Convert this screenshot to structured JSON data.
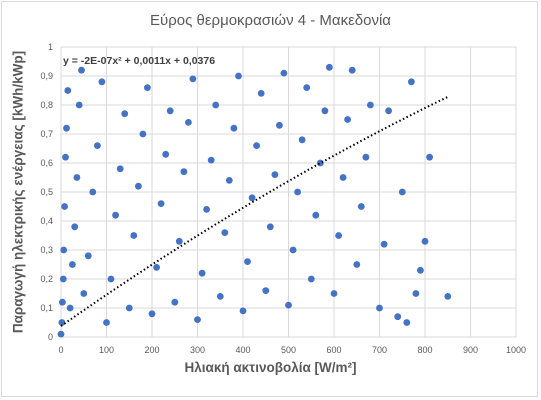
{
  "chart_data": {
    "type": "scatter",
    "title": "Εύρος θερμοκρασιών 4 - Μακεδονία",
    "xlabel": "Ηλιακή ακτινοβολία [W/m²]",
    "ylabel": "Παραγωγή ηλεκτρικής ενέργειας [kWh/kWp]",
    "xlim": [
      0,
      1000
    ],
    "ylim": [
      0,
      1
    ],
    "xticks": [
      "0",
      "100",
      "200",
      "300",
      "400",
      "500",
      "600",
      "700",
      "800",
      "900",
      "1000"
    ],
    "yticks": [
      "0",
      "0,1",
      "0,2",
      "0,3",
      "0,4",
      "0,5",
      "0,6",
      "0,7",
      "0,8",
      "0,9",
      "1"
    ],
    "grid": true,
    "marker_color": "#4472c4",
    "trendline": {
      "type": "polynomial",
      "label": "y = -2E-07x² + 0,0011x + 0,0376",
      "coefficients": {
        "a": -2e-07,
        "b": 0.0011,
        "c": 0.0376
      },
      "x_range": [
        0,
        850
      ],
      "style": "dotted",
      "color": "#000000"
    },
    "series": [
      {
        "points": [
          [
            0,
            0.01
          ],
          [
            2,
            0.05
          ],
          [
            3,
            0.12
          ],
          [
            5,
            0.2
          ],
          [
            6,
            0.3
          ],
          [
            8,
            0.45
          ],
          [
            10,
            0.62
          ],
          [
            12,
            0.72
          ],
          [
            15,
            0.85
          ],
          [
            20,
            0.1
          ],
          [
            25,
            0.25
          ],
          [
            30,
            0.38
          ],
          [
            35,
            0.55
          ],
          [
            40,
            0.8
          ],
          [
            45,
            0.92
          ],
          [
            50,
            0.15
          ],
          [
            60,
            0.28
          ],
          [
            70,
            0.5
          ],
          [
            80,
            0.66
          ],
          [
            90,
            0.88
          ],
          [
            100,
            0.05
          ],
          [
            110,
            0.2
          ],
          [
            120,
            0.42
          ],
          [
            130,
            0.58
          ],
          [
            140,
            0.77
          ],
          [
            150,
            0.1
          ],
          [
            160,
            0.35
          ],
          [
            170,
            0.52
          ],
          [
            180,
            0.7
          ],
          [
            190,
            0.86
          ],
          [
            200,
            0.08
          ],
          [
            210,
            0.24
          ],
          [
            220,
            0.46
          ],
          [
            230,
            0.63
          ],
          [
            240,
            0.78
          ],
          [
            250,
            0.12
          ],
          [
            260,
            0.33
          ],
          [
            270,
            0.57
          ],
          [
            280,
            0.74
          ],
          [
            290,
            0.89
          ],
          [
            300,
            0.06
          ],
          [
            310,
            0.22
          ],
          [
            320,
            0.44
          ],
          [
            330,
            0.61
          ],
          [
            340,
            0.8
          ],
          [
            350,
            0.14
          ],
          [
            360,
            0.36
          ],
          [
            370,
            0.54
          ],
          [
            380,
            0.72
          ],
          [
            390,
            0.9
          ],
          [
            400,
            0.09
          ],
          [
            410,
            0.26
          ],
          [
            420,
            0.48
          ],
          [
            430,
            0.66
          ],
          [
            440,
            0.84
          ],
          [
            450,
            0.16
          ],
          [
            460,
            0.38
          ],
          [
            470,
            0.56
          ],
          [
            480,
            0.73
          ],
          [
            490,
            0.91
          ],
          [
            500,
            0.11
          ],
          [
            510,
            0.3
          ],
          [
            520,
            0.5
          ],
          [
            530,
            0.68
          ],
          [
            540,
            0.86
          ],
          [
            550,
            0.2
          ],
          [
            560,
            0.42
          ],
          [
            570,
            0.6
          ],
          [
            580,
            0.78
          ],
          [
            590,
            0.93
          ],
          [
            600,
            0.15
          ],
          [
            610,
            0.35
          ],
          [
            620,
            0.55
          ],
          [
            630,
            0.75
          ],
          [
            640,
            0.92
          ],
          [
            650,
            0.25
          ],
          [
            660,
            0.45
          ],
          [
            670,
            0.62
          ],
          [
            680,
            0.8
          ],
          [
            700,
            0.1
          ],
          [
            710,
            0.32
          ],
          [
            720,
            0.78
          ],
          [
            740,
            0.07
          ],
          [
            750,
            0.5
          ],
          [
            760,
            0.05
          ],
          [
            770,
            0.88
          ],
          [
            780,
            0.15
          ],
          [
            790,
            0.23
          ],
          [
            800,
            0.33
          ],
          [
            810,
            0.62
          ],
          [
            850,
            0.14
          ]
        ]
      }
    ]
  }
}
